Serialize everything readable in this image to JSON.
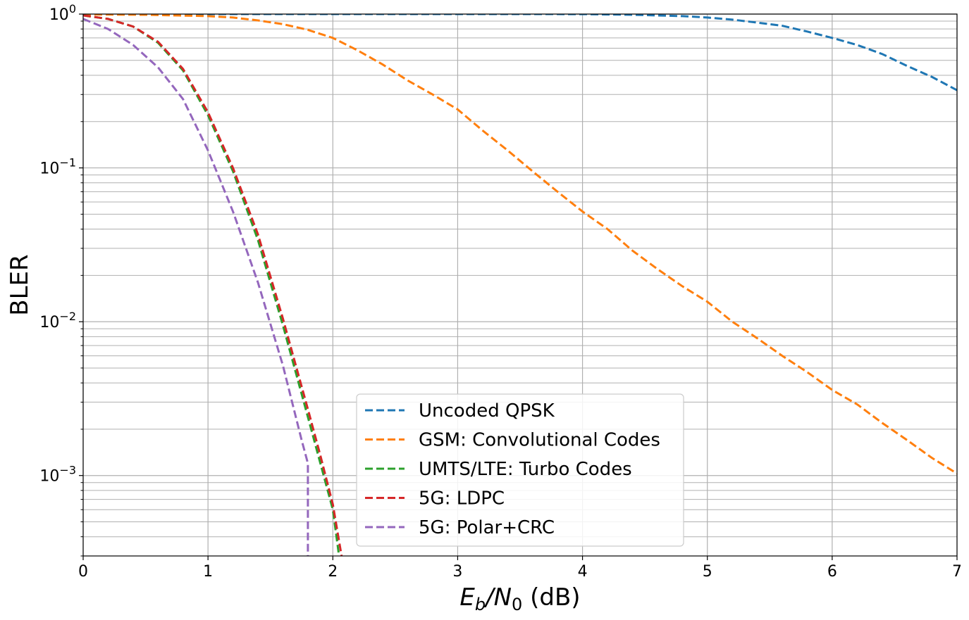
{
  "chart_data": {
    "type": "line",
    "xlabel_parts": [
      "E",
      "b",
      "/N",
      "0",
      " (dB)"
    ],
    "ylabel": "BLER",
    "xlim": [
      0,
      7
    ],
    "ylim": [
      0.0003,
      1
    ],
    "yscale": "log",
    "grid": true,
    "legend_position": "lower-center",
    "x_ticks": [
      "0",
      "1",
      "2",
      "3",
      "4",
      "5",
      "6",
      "7"
    ],
    "y_ticks": [
      {
        "value": 1,
        "base": "10",
        "exp": "0"
      },
      {
        "value": 0.1,
        "base": "10",
        "exp": "−1"
      },
      {
        "value": 0.01,
        "base": "10",
        "exp": "−2"
      },
      {
        "value": 0.001,
        "base": "10",
        "exp": "−3"
      }
    ],
    "series": [
      {
        "name": "Uncoded QPSK",
        "color": "#1f77b4",
        "x": [
          0,
          0.5,
          1,
          1.5,
          2,
          2.5,
          3,
          3.5,
          4,
          4.4,
          4.8,
          5,
          5.2,
          5.4,
          5.6,
          5.8,
          6,
          6.2,
          6.4,
          6.6,
          6.8,
          7
        ],
        "y": [
          1,
          1,
          1,
          1,
          1,
          1,
          1,
          1,
          0.999,
          0.99,
          0.97,
          0.95,
          0.92,
          0.88,
          0.84,
          0.77,
          0.7,
          0.63,
          0.55,
          0.46,
          0.39,
          0.32
        ]
      },
      {
        "name": "GSM: Convolutional Codes",
        "color": "#ff7f0e",
        "x": [
          0,
          0.5,
          1,
          1.2,
          1.4,
          1.6,
          1.8,
          2,
          2.2,
          2.4,
          2.6,
          2.8,
          3,
          3.2,
          3.4,
          3.6,
          3.8,
          4,
          4.2,
          4.4,
          4.6,
          4.8,
          5,
          5.2,
          5.4,
          5.6,
          5.8,
          6,
          6.2,
          6.4,
          6.6,
          6.8,
          7
        ],
        "y": [
          0.995,
          0.99,
          0.97,
          0.95,
          0.91,
          0.86,
          0.79,
          0.7,
          0.58,
          0.47,
          0.37,
          0.3,
          0.24,
          0.175,
          0.13,
          0.095,
          0.07,
          0.052,
          0.04,
          0.029,
          0.022,
          0.017,
          0.0135,
          0.01,
          0.0078,
          0.006,
          0.0047,
          0.0036,
          0.0029,
          0.0022,
          0.0017,
          0.0013,
          0.00103
        ]
      },
      {
        "name": "UMTS/LTE: Turbo Codes",
        "color": "#2ca02c",
        "x": [
          0,
          0.2,
          0.4,
          0.6,
          0.8,
          1,
          1.2,
          1.4,
          1.6,
          1.8,
          1.9,
          2,
          2.05
        ],
        "y": [
          0.98,
          0.93,
          0.83,
          0.65,
          0.43,
          0.22,
          0.095,
          0.034,
          0.0095,
          0.0024,
          0.0012,
          0.0006,
          0.0003
        ]
      },
      {
        "name": "5G: LDPC",
        "color": "#d62728",
        "x": [
          0,
          0.2,
          0.4,
          0.6,
          0.8,
          1,
          1.2,
          1.4,
          1.6,
          1.8,
          1.9,
          2,
          2.07
        ],
        "y": [
          0.98,
          0.93,
          0.83,
          0.66,
          0.44,
          0.23,
          0.1,
          0.037,
          0.0105,
          0.0027,
          0.00135,
          0.00065,
          0.0003
        ]
      },
      {
        "name": "5G: Polar+CRC",
        "color": "#9467bd",
        "x": [
          0,
          0.2,
          0.4,
          0.6,
          0.8,
          1,
          1.2,
          1.4,
          1.6,
          1.75,
          1.8,
          1.8
        ],
        "y": [
          0.93,
          0.8,
          0.63,
          0.45,
          0.28,
          0.13,
          0.052,
          0.018,
          0.0052,
          0.0017,
          0.0012,
          0.0003
        ]
      }
    ]
  }
}
